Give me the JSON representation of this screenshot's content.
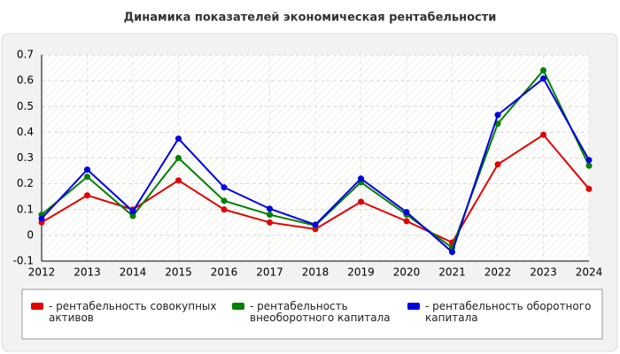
{
  "chart_data": {
    "type": "line",
    "title": "Динамика показателей экономическая рентабельности",
    "categories": [
      "2012",
      "2013",
      "2014",
      "2015",
      "2016",
      "2017",
      "2018",
      "2019",
      "2020",
      "2021",
      "2022",
      "2023",
      "2024"
    ],
    "series": [
      {
        "name": "- рентабельность совокупных активов",
        "color": "#e00000",
        "values": [
          0.05,
          0.155,
          0.1,
          0.213,
          0.1,
          0.05,
          0.024,
          0.13,
          0.055,
          -0.028,
          0.275,
          0.39,
          0.18
        ]
      },
      {
        "name": "- рентабельность внеоборотного капитала",
        "color": "#008000",
        "values": [
          0.08,
          0.227,
          0.075,
          0.3,
          0.134,
          0.08,
          0.038,
          0.206,
          0.08,
          -0.048,
          0.433,
          0.64,
          0.27
        ]
      },
      {
        "name": "- рентабельность оборотного капитала",
        "color": "#0000e0",
        "values": [
          0.065,
          0.255,
          0.093,
          0.375,
          0.186,
          0.103,
          0.041,
          0.22,
          0.09,
          -0.065,
          0.467,
          0.608,
          0.292
        ]
      }
    ],
    "ylim": [
      -0.1,
      0.7
    ],
    "yticks": [
      -0.1,
      0,
      0.1,
      0.2,
      0.3,
      0.4,
      0.5,
      0.6,
      0.7
    ],
    "grid": true
  }
}
